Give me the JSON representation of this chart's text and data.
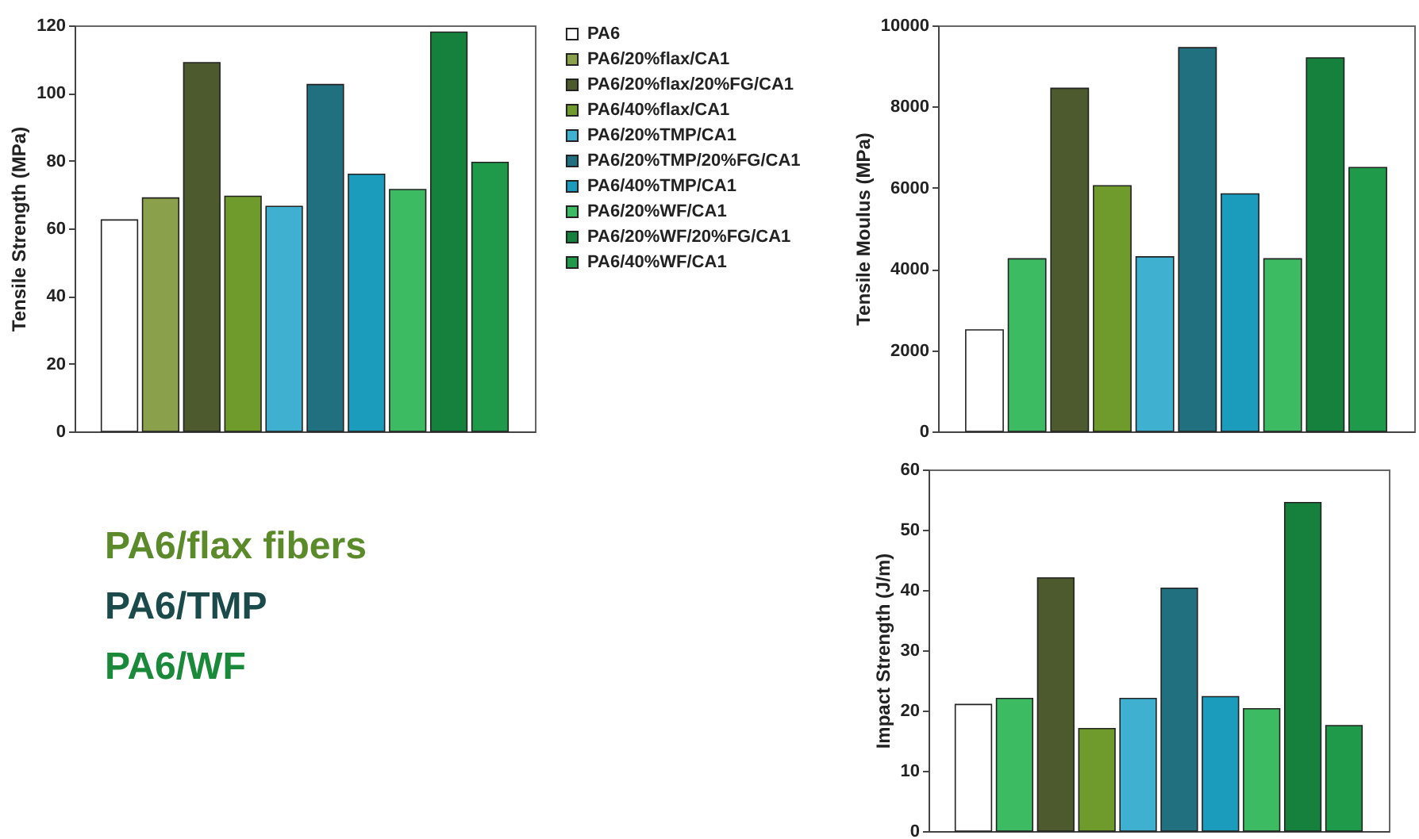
{
  "chart_data": [
    {
      "type": "bar",
      "ylabel": "Tensile Strength (MPa)",
      "categories": [
        null
      ],
      "ylim": [
        0,
        120
      ],
      "yticks": [
        0,
        20,
        40,
        60,
        80,
        100,
        120
      ],
      "legend": "right",
      "series": [
        {
          "name": "PA6",
          "color": "#ffffff",
          "values": [
            62.5
          ]
        },
        {
          "name": "PA6/20%flax/CA1",
          "color": "#8aa04a",
          "values": [
            69
          ]
        },
        {
          "name": "PA6/20%flax/20%FG/CA1",
          "color": "#4d5a2e",
          "values": [
            109
          ]
        },
        {
          "name": "PA6/40%flax/CA1",
          "color": "#6f9a2c",
          "values": [
            69.5
          ]
        },
        {
          "name": "PA6/20%TMP/CA1",
          "color": "#3fb0d0",
          "values": [
            66.5
          ]
        },
        {
          "name": "PA6/20%TMP/20%FG/CA1",
          "color": "#20707f",
          "values": [
            102.5
          ]
        },
        {
          "name": "PA6/40%TMP/CA1",
          "color": "#1c9cbc",
          "values": [
            76
          ]
        },
        {
          "name": "PA6/20%WF/CA1",
          "color": "#3dbb62",
          "values": [
            71.5
          ]
        },
        {
          "name": "PA6/20%WF/20%FG/CA1",
          "color": "#16813c",
          "values": [
            118
          ]
        },
        {
          "name": "PA6/40%WF/CA1",
          "color": "#1f9a4a",
          "values": [
            79.5
          ]
        }
      ]
    },
    {
      "type": "bar",
      "ylabel": "Tensile Moulus (MPa)",
      "categories": [
        null
      ],
      "ylim": [
        0,
        10000
      ],
      "yticks": [
        0,
        2000,
        4000,
        6000,
        8000,
        10000
      ],
      "series": [
        {
          "color": "#ffffff",
          "values": [
            2500
          ]
        },
        {
          "color": "#3dbb62",
          "values": [
            4250
          ]
        },
        {
          "color": "#4d5a2e",
          "values": [
            8450
          ]
        },
        {
          "color": "#6f9a2c",
          "values": [
            6050
          ]
        },
        {
          "color": "#3fb0d0",
          "values": [
            4300
          ]
        },
        {
          "color": "#20707f",
          "values": [
            9450
          ]
        },
        {
          "color": "#1c9cbc",
          "values": [
            5850
          ]
        },
        {
          "color": "#3dbb63",
          "values": [
            4250
          ]
        },
        {
          "color": "#16813c",
          "values": [
            9200
          ]
        },
        {
          "color": "#1f9a4a",
          "values": [
            6500
          ]
        }
      ]
    },
    {
      "type": "bar",
      "ylabel": "Impact Strength (J/m)",
      "categories": [
        null
      ],
      "ylim": [
        0,
        60
      ],
      "yticks": [
        0,
        10,
        20,
        30,
        40,
        50,
        60
      ],
      "series": [
        {
          "color": "#ffffff",
          "values": [
            21
          ]
        },
        {
          "color": "#3dbb62",
          "values": [
            22
          ]
        },
        {
          "color": "#4d5a2e",
          "values": [
            42
          ]
        },
        {
          "color": "#6f9a2c",
          "values": [
            17
          ]
        },
        {
          "color": "#3fb0d0",
          "values": [
            22
          ]
        },
        {
          "color": "#20707f",
          "values": [
            40.3
          ]
        },
        {
          "color": "#1c9cbc",
          "values": [
            22.3
          ]
        },
        {
          "color": "#3dbb63",
          "values": [
            20.3
          ]
        },
        {
          "color": "#16813c",
          "values": [
            54.5
          ]
        },
        {
          "color": "#1f9a4a",
          "values": [
            17.5
          ]
        }
      ]
    },
    {
      "type": "other",
      "annotations": [
        "PA6/flax fibers",
        "PA6/TMP",
        "PA6/WF"
      ],
      "colors": [
        "#5a8a2a",
        "#1a4a4a",
        "#1a8a3a"
      ]
    }
  ]
}
